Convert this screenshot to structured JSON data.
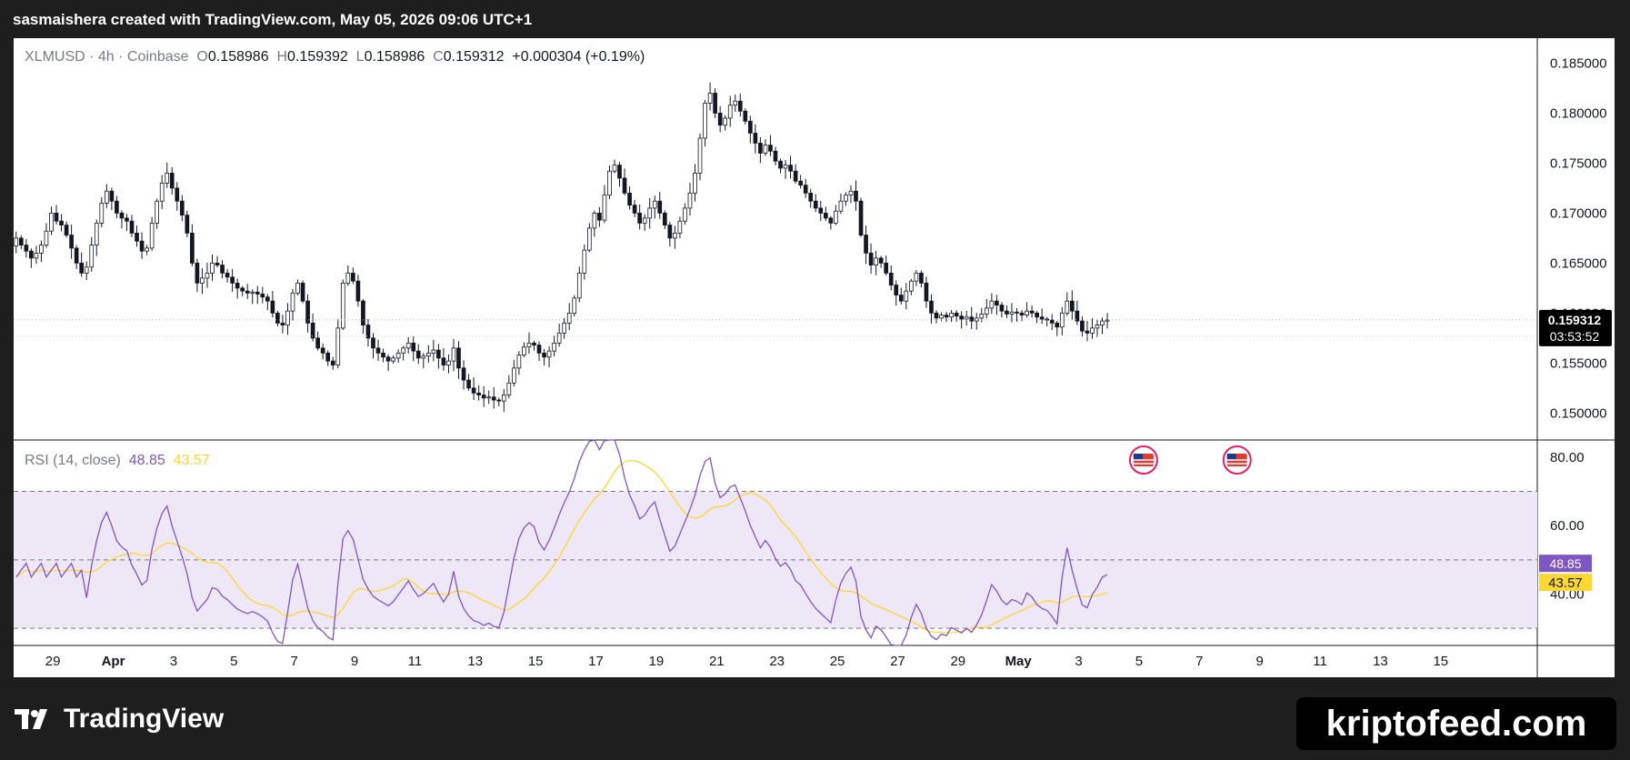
{
  "header": {
    "text": "sasmaishera created with TradingView.com, May 05, 2026 09:06 UTC+1"
  },
  "legend": {
    "symbol": "XLMUSD · 4h · Coinbase",
    "o_label": "O",
    "o_value": "0.158986",
    "h_label": "H",
    "h_value": "0.159392",
    "l_label": "L",
    "l_value": "0.158986",
    "c_label": "C",
    "c_value": "0.159312",
    "change": "+0.000304 (+0.19%)"
  },
  "rsi_legend": {
    "label": "RSI (14, close)",
    "rsi_value": "48.85",
    "ma_value": "43.57"
  },
  "price_tag": {
    "price": "0.159312",
    "countdown": "03:53:52"
  },
  "footer": {
    "logo_text": "TradingView",
    "watermark": "kriptofeed.com"
  },
  "colors": {
    "up": "#131722",
    "down": "#131722",
    "up_body": "#ffffff",
    "rsi_line": "#7e57c2",
    "rsi_ma": "#fdd835",
    "rsi_band": "#ede7f6",
    "price_tag_bg": "#000000",
    "rsi_tag_bg": "#7e57c2",
    "ma_tag_bg": "#fdd835"
  },
  "chart_data": [
    {
      "type": "candlestick",
      "title": "XLMUSD · 4h · Coinbase",
      "y_ticks": [
        "0.185000",
        "0.180000",
        "0.175000",
        "0.170000",
        "0.165000",
        "0.160000",
        "0.155000",
        "0.150000"
      ],
      "y_tick_values": [
        0.185,
        0.18,
        0.175,
        0.17,
        0.165,
        0.16,
        0.155,
        0.15
      ],
      "ylim": [
        0.1473,
        0.1875
      ],
      "x_ticks": [
        "29",
        "Apr",
        "3",
        "5",
        "7",
        "9",
        "11",
        "13",
        "15",
        "17",
        "19",
        "21",
        "23",
        "25",
        "27",
        "29",
        "May",
        "3",
        "5",
        "7",
        "9",
        "11",
        "13",
        "15"
      ],
      "x_tick_days": [
        -2,
        0,
        2,
        4,
        6,
        8,
        10,
        12,
        14,
        16,
        18,
        20,
        22,
        24,
        26,
        28,
        30,
        32,
        34,
        36,
        38,
        40,
        42,
        44
      ],
      "xlim_days": [
        -3.3,
        47.2
      ],
      "last_price": 0.159312,
      "candles_4h_close": [
        0.1675,
        0.1668,
        0.1662,
        0.1655,
        0.166,
        0.1668,
        0.1682,
        0.17,
        0.1692,
        0.1688,
        0.1678,
        0.1665,
        0.165,
        0.164,
        0.1646,
        0.1668,
        0.169,
        0.171,
        0.1722,
        0.1712,
        0.17,
        0.1695,
        0.1692,
        0.168,
        0.1672,
        0.1662,
        0.1665,
        0.169,
        0.1712,
        0.173,
        0.174,
        0.1725,
        0.1712,
        0.1698,
        0.168,
        0.165,
        0.163,
        0.1635,
        0.164,
        0.165,
        0.1648,
        0.164,
        0.1636,
        0.163,
        0.1625,
        0.1622,
        0.162,
        0.1621,
        0.1619,
        0.1616,
        0.1612,
        0.16,
        0.159,
        0.1588,
        0.1602,
        0.162,
        0.163,
        0.1612,
        0.159,
        0.1575,
        0.1565,
        0.156,
        0.1552,
        0.1548,
        0.1585,
        0.163,
        0.164,
        0.1632,
        0.1612,
        0.1588,
        0.1575,
        0.1565,
        0.156,
        0.1556,
        0.1552,
        0.1555,
        0.156,
        0.1565,
        0.157,
        0.1562,
        0.1555,
        0.1557,
        0.156,
        0.1563,
        0.1555,
        0.1548,
        0.1552,
        0.1565,
        0.1545,
        0.1533,
        0.1525,
        0.152,
        0.1518,
        0.1515,
        0.1516,
        0.1513,
        0.1512,
        0.1518,
        0.153,
        0.1545,
        0.1558,
        0.1566,
        0.157,
        0.1568,
        0.156,
        0.1556,
        0.1562,
        0.157,
        0.158,
        0.159,
        0.16,
        0.1615,
        0.164,
        0.1663,
        0.1685,
        0.17,
        0.1693,
        0.1718,
        0.1742,
        0.1748,
        0.1735,
        0.172,
        0.1708,
        0.17,
        0.169,
        0.1695,
        0.1705,
        0.1712,
        0.17,
        0.1688,
        0.1675,
        0.168,
        0.1692,
        0.1705,
        0.172,
        0.174,
        0.1775,
        0.181,
        0.182,
        0.18,
        0.1788,
        0.1795,
        0.1808,
        0.1812,
        0.1802,
        0.1792,
        0.178,
        0.177,
        0.176,
        0.1768,
        0.1762,
        0.1752,
        0.1745,
        0.1748,
        0.1742,
        0.1732,
        0.1728,
        0.172,
        0.1712,
        0.1705,
        0.17,
        0.1695,
        0.169,
        0.1702,
        0.1712,
        0.1718,
        0.1722,
        0.1712,
        0.1678,
        0.166,
        0.1648,
        0.1655,
        0.165,
        0.164,
        0.1628,
        0.1618,
        0.1612,
        0.1622,
        0.1632,
        0.164,
        0.163,
        0.1612,
        0.16,
        0.1595,
        0.1598,
        0.1596,
        0.16,
        0.1597,
        0.1594,
        0.1596,
        0.1592,
        0.1595,
        0.1599,
        0.1605,
        0.1612,
        0.1608,
        0.1602,
        0.1599,
        0.1601,
        0.16,
        0.1598,
        0.1602,
        0.16,
        0.1596,
        0.1594,
        0.1593,
        0.159,
        0.1586,
        0.16,
        0.1612,
        0.1602,
        0.1592,
        0.1582,
        0.158,
        0.1585,
        0.1588,
        0.1592,
        0.1593
      ]
    },
    {
      "type": "line",
      "title": "RSI (14, close)",
      "y_ticks": [
        "80.00",
        "60.00",
        "40.00"
      ],
      "y_tick_values": [
        80,
        60,
        40
      ],
      "ylim": [
        25,
        85
      ],
      "band": [
        30,
        70
      ],
      "midline": 50,
      "last_rsi": 48.85,
      "last_ma": 43.57
    }
  ]
}
